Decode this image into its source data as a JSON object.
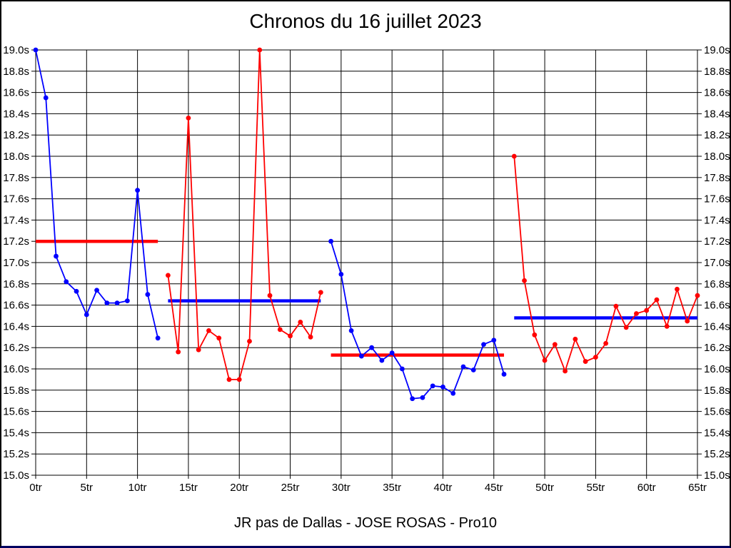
{
  "title": "Chronos du 16 juillet 2023",
  "footer": "JR pas de Dallas - JOSE ROSAS - Pro10",
  "colors": {
    "series_blue": "#0000ff",
    "series_red": "#ff0000",
    "grid": "#000000",
    "background": "#ffffff",
    "bottom_edge": "#000060"
  },
  "chart_data": {
    "type": "line",
    "title": "Chronos du 16 juillet 2023",
    "xlabel": "",
    "ylabel": "",
    "x_unit": "tr",
    "y_unit": "s",
    "xlim": [
      0,
      65
    ],
    "ylim": [
      15.0,
      19.0
    ],
    "x_tick_step": 5,
    "y_tick_step": 0.2,
    "grid": true,
    "legend": "none",
    "x_tick_labels": [
      "0tr",
      "5tr",
      "10tr",
      "15tr",
      "20tr",
      "25tr",
      "30tr",
      "35tr",
      "40tr",
      "45tr",
      "50tr",
      "55tr",
      "60tr",
      "65tr"
    ],
    "y_tick_labels": [
      "19.0s",
      "18.8s",
      "18.6s",
      "18.4s",
      "18.2s",
      "18.0s",
      "17.8s",
      "17.6s",
      "17.4s",
      "17.2s",
      "17.0s",
      "16.8s",
      "16.6s",
      "16.4s",
      "16.2s",
      "16.0s",
      "15.8s",
      "15.6s",
      "15.4s",
      "15.2s",
      "15.0s"
    ],
    "series": [
      {
        "name": "run-1-laps",
        "color": "#0000ff",
        "x": [
          0,
          1,
          2,
          3,
          4,
          5,
          6,
          7,
          8,
          9,
          10,
          11,
          12
        ],
        "values": [
          19.0,
          18.55,
          17.06,
          16.82,
          16.73,
          16.51,
          16.74,
          16.62,
          16.62,
          16.64,
          17.68,
          16.7,
          16.29
        ]
      },
      {
        "name": "run-2-laps",
        "color": "#ff0000",
        "x": [
          13,
          14,
          15,
          16,
          17,
          18,
          19,
          20,
          21,
          22,
          23,
          24,
          25,
          26,
          27,
          28
        ],
        "values": [
          16.88,
          16.16,
          18.36,
          16.18,
          16.36,
          16.29,
          15.9,
          15.9,
          16.26,
          19.0,
          16.69,
          16.37,
          16.31,
          16.44,
          16.3,
          16.72
        ]
      },
      {
        "name": "run-3-laps",
        "color": "#0000ff",
        "x": [
          29,
          30,
          31,
          32,
          33,
          34,
          35,
          36,
          37,
          38,
          39,
          40,
          41,
          42,
          43,
          44,
          45,
          46
        ],
        "values": [
          17.2,
          16.89,
          16.36,
          16.12,
          16.2,
          16.08,
          16.15,
          16.0,
          15.72,
          15.73,
          15.84,
          15.83,
          15.77,
          16.02,
          15.99,
          16.23,
          16.27,
          15.95
        ]
      },
      {
        "name": "run-4-laps",
        "color": "#ff0000",
        "x": [
          47,
          48,
          49,
          50,
          51,
          52,
          53,
          54,
          55,
          56,
          57,
          58,
          59,
          60,
          61,
          62,
          63,
          64,
          65
        ],
        "values": [
          18.0,
          16.83,
          16.32,
          16.08,
          16.23,
          15.98,
          16.28,
          16.07,
          16.11,
          16.24,
          16.59,
          16.39,
          16.52,
          16.55,
          16.65,
          16.4,
          16.75,
          16.45,
          16.69
        ]
      }
    ],
    "average_lines": [
      {
        "name": "run-1-average",
        "color": "#ff0000",
        "value": 17.2,
        "x_from": 0,
        "x_to": 12
      },
      {
        "name": "run-2-average",
        "color": "#0000ff",
        "value": 16.64,
        "x_from": 13,
        "x_to": 28
      },
      {
        "name": "run-3-average",
        "color": "#ff0000",
        "value": 16.13,
        "x_from": 29,
        "x_to": 46
      },
      {
        "name": "run-4-average",
        "color": "#0000ff",
        "value": 16.48,
        "x_from": 47,
        "x_to": 65
      }
    ]
  }
}
